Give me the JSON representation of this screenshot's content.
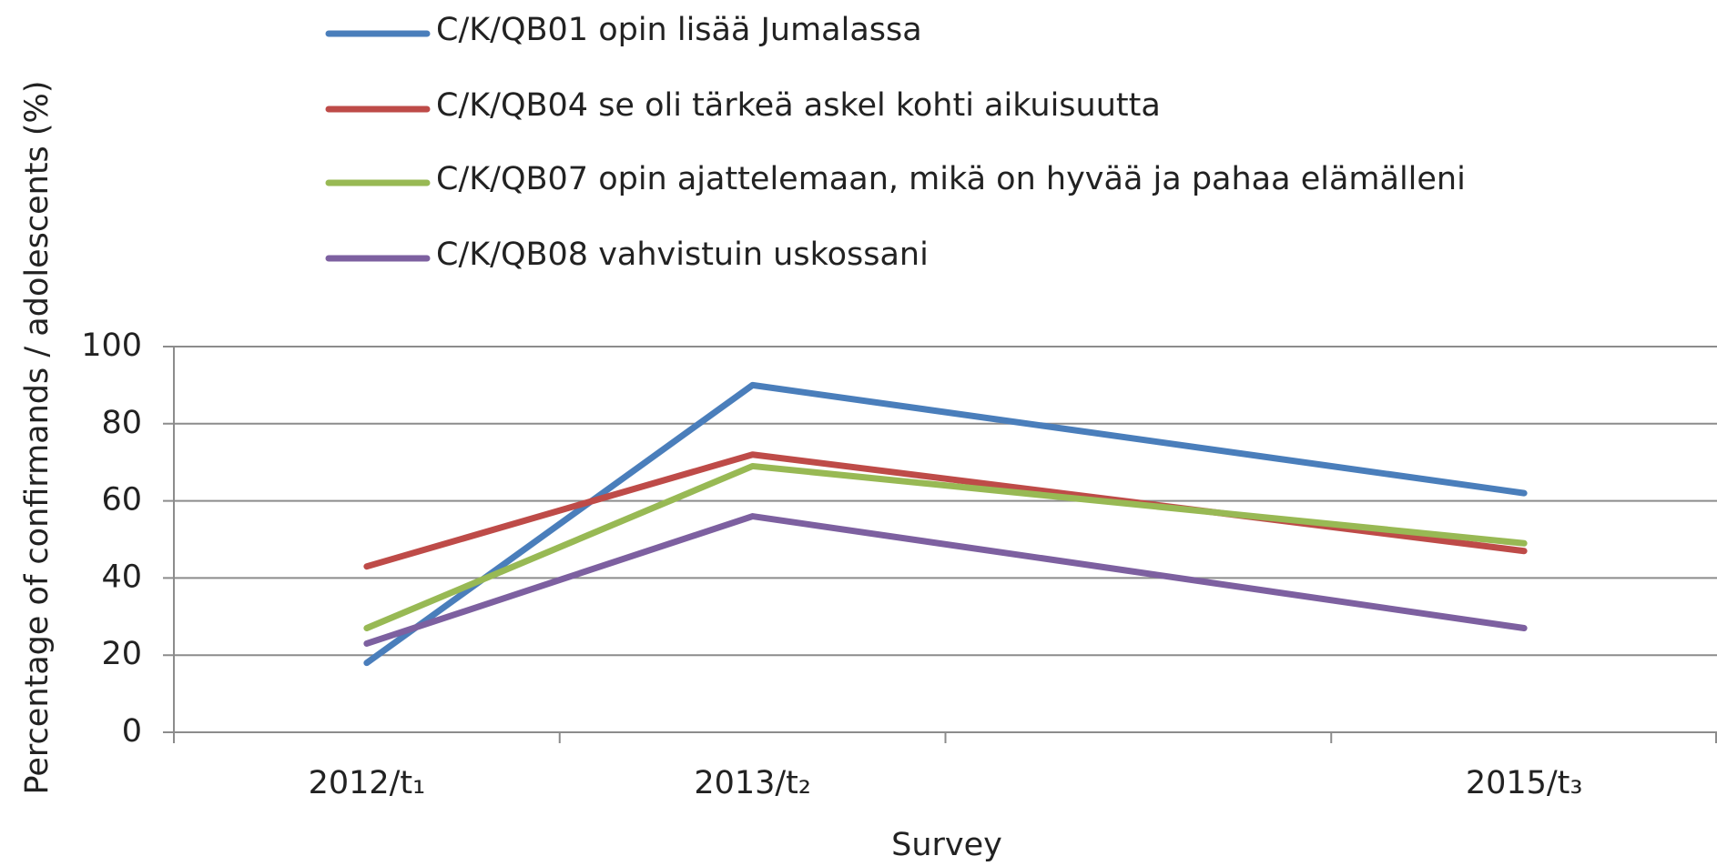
{
  "chart_data": {
    "type": "line",
    "x_label": "Survey",
    "y_label": "Percentage of confirmands / adolescents (%)",
    "categories": [
      "2012/t₁",
      "2013/t₂",
      null,
      "2015/t₃"
    ],
    "series": [
      {
        "name": "C/K/QB01 opin lisää Jumalassa",
        "color": "#4a7ebb",
        "values": [
          18,
          90,
          null,
          62
        ]
      },
      {
        "name": "C/K/QB04 se oli tärkeä askel kohti aikuisuutta",
        "color": "#be4b48",
        "values": [
          43,
          72,
          null,
          47
        ]
      },
      {
        "name": "C/K/QB07 opin ajattelemaan, mikä on hyvää ja pahaa elämälleni",
        "color": "#98b954",
        "values": [
          27,
          69,
          null,
          49
        ]
      },
      {
        "name": "C/K/QB08 vahvistuin uskossani",
        "color": "#7d60a0",
        "values": [
          23,
          56,
          null,
          27
        ]
      }
    ],
    "connect_gaps": true,
    "ylim": [
      0,
      100
    ],
    "yticks": [
      0,
      20,
      40,
      60,
      80,
      100
    ],
    "grid": true,
    "legend": "top"
  }
}
